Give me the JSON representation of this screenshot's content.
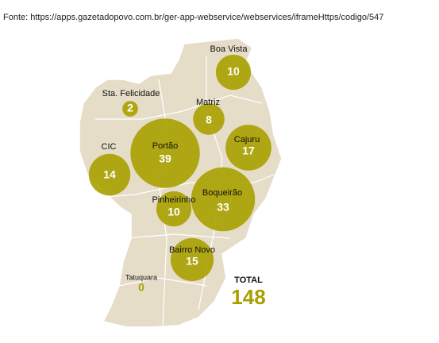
{
  "source": "Fonte: https://apps.gazetadopovo.com.br/ger-app-webservice/webservices/iframeHttps/codigo/547",
  "regions": [
    {
      "name": "Boa Vista",
      "value": 10
    },
    {
      "name": "Sta. Felicidade",
      "value": 2
    },
    {
      "name": "Matriz",
      "value": 8
    },
    {
      "name": "Cajuru",
      "value": 17
    },
    {
      "name": "CIC",
      "value": 14
    },
    {
      "name": "Portão",
      "value": 39
    },
    {
      "name": "Boqueirão",
      "value": 33
    },
    {
      "name": "Pinheirinho",
      "value": 10
    },
    {
      "name": "Bairro Novo",
      "value": 15
    },
    {
      "name": "Tatuquara",
      "value": 0
    }
  ],
  "total": {
    "label": "TOTAL",
    "value": 148
  }
}
